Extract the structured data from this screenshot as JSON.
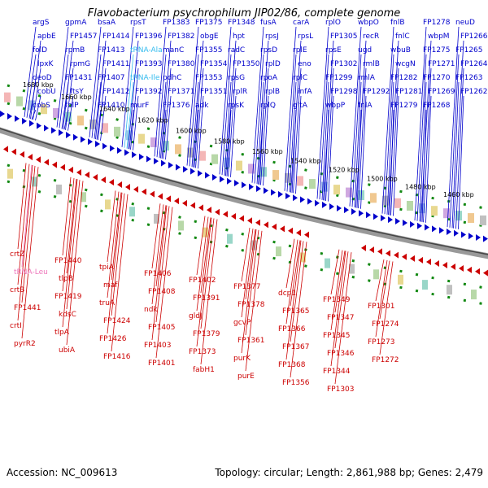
{
  "title": "Flavobacterium psychrophilum JIP02/86, complete genome",
  "footer": {
    "accession": "Accession: NC_009613",
    "stats": "Topology: circular; Length: 2,861,988 bp; Genes: 2,479"
  },
  "colors": {
    "forward": "#0000cc",
    "reverse": "#cc0000",
    "trna": "#33bbee",
    "trna_reverse": "#ee77bb",
    "backbone": "#777777",
    "marker": "#118811"
  },
  "scale_labels": [
    "1680 kbp",
    "1660 kbp",
    "1640 kbp",
    "1620 kbp",
    "1600 kbp",
    "1580 kbp",
    "1560 kbp",
    "1540 kbp",
    "1520 kbp",
    "1500 kbp",
    "1480 kbp",
    "1460 kbp"
  ],
  "forward_genes": [
    "argS",
    "apbE",
    "folD",
    "lpxK",
    "deoD",
    "cobU",
    "cobS",
    "gpmA",
    "FP1457",
    "rpmB",
    "rpmG",
    "FP1431",
    "ftsY",
    "folP",
    "bsaA",
    "FP1414",
    "FP1413",
    "FP1411",
    "FP1407",
    "FP1412",
    "FP1410",
    "rpsT",
    "FP1396",
    "tRNA-Ala",
    "FP1393",
    "tRNA-Ile",
    "FP1392",
    "murF",
    "FP1383",
    "FP1382",
    "manC",
    "FP1380",
    "pdhC",
    "FP1371",
    "FP1376",
    "FP1375",
    "obgE",
    "FP1355",
    "FP1354",
    "FP1353",
    "FP1351",
    "adk",
    "FP1348",
    "hpt",
    "radC",
    "FP1350",
    "rpsG",
    "rplR",
    "rpsK",
    "fusA",
    "rpsJ",
    "rpsD",
    "rplD",
    "rpoA",
    "rplB",
    "rplQ",
    "carA",
    "rpsL",
    "rplE",
    "eno",
    "rplC",
    "infA",
    "gltA",
    "rplO",
    "FP1305",
    "rpsE",
    "FP1302",
    "FP1299",
    "FP1298",
    "wbpP",
    "wbpO",
    "recR",
    "ugd",
    "rmlB",
    "rmlA",
    "FP1292",
    "fnlA",
    "fnlB",
    "fnlC",
    "wbuB",
    "wcgN",
    "FP1282",
    "FP1281",
    "FP1279",
    "FP1278",
    "wbpM",
    "FP1275",
    "FP1271",
    "FP1270",
    "FP1269",
    "FP1268",
    "neuD",
    "FP1266",
    "FP1265",
    "FP1264",
    "FP1263",
    "FP1262"
  ],
  "reverse_genes": [
    "crtZ",
    "tRNA-Leu",
    "crtB",
    "FP1441",
    "crtI",
    "pyrR2",
    "FP1440",
    "tlpB",
    "FP1419",
    "kdsC",
    "tlpA",
    "ubiA",
    "tpiA",
    "maf",
    "truA",
    "FP1424",
    "FP1426",
    "FP1416",
    "FP1406",
    "FP1408",
    "ndk",
    "FP1405",
    "FP1403",
    "FP1401",
    "FP1402",
    "FP1391",
    "gldJ",
    "FP1379",
    "FP1373",
    "fabH1",
    "FP1377",
    "FP1378",
    "gcvP",
    "FP1361",
    "purK",
    "purE",
    "dcp1",
    "FP1365",
    "FP1366",
    "FP1367",
    "FP1368",
    "FP1356",
    "FP1349",
    "FP1347",
    "FP1345",
    "FP1346",
    "FP1344",
    "FP1303",
    "FP1301",
    "FP1274",
    "FP1273",
    "FP1272"
  ]
}
